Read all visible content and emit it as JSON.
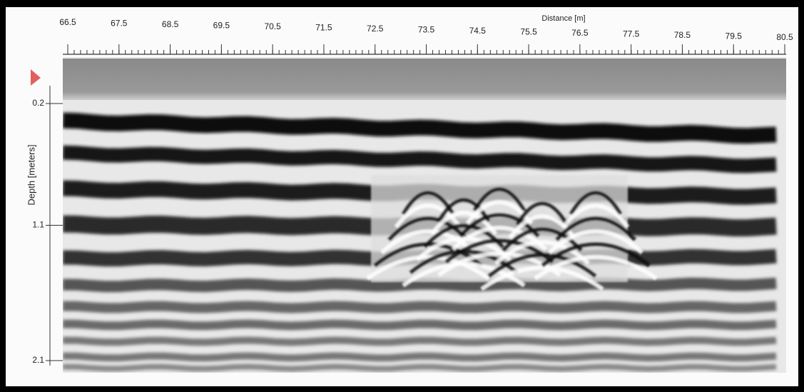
{
  "x_axis": {
    "label": "Distance [m]",
    "ticks": [
      66.5,
      67.5,
      68.5,
      69.5,
      70.5,
      71.5,
      72.5,
      73.5,
      74.5,
      75.5,
      76.5,
      77.5,
      78.5,
      79.5,
      80.5
    ]
  },
  "y_axis": {
    "label": "Depth [meters]",
    "ticks": [
      0.2,
      1.1,
      2.1
    ]
  }
}
